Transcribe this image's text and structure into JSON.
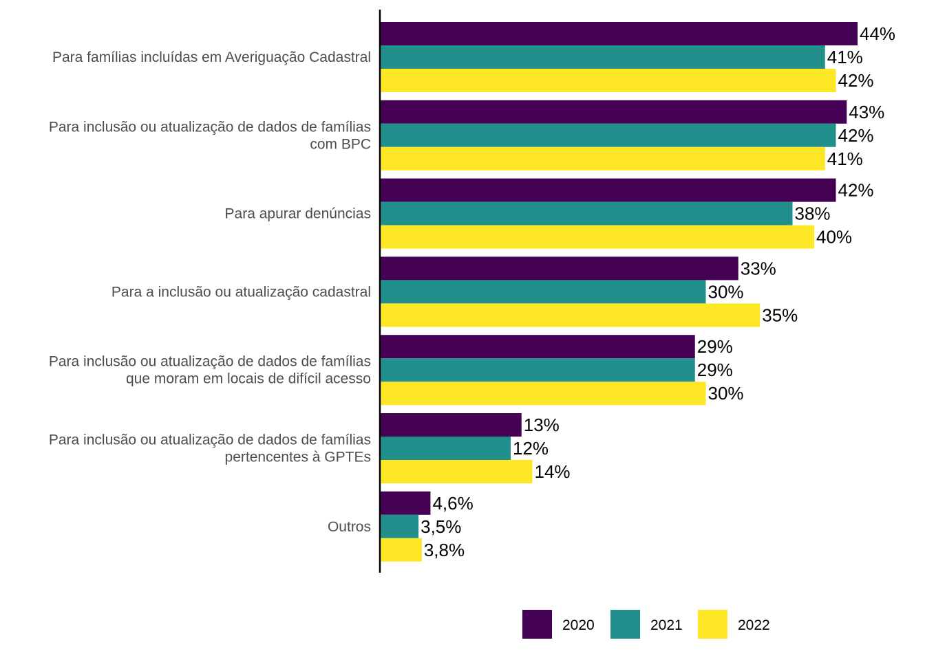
{
  "chart_data": {
    "type": "bar",
    "orientation": "horizontal",
    "categories": [
      [
        "Para famílias incluídas em Averiguação Cadastral"
      ],
      [
        "Para inclusão ou atualização de dados de famílias",
        "com BPC"
      ],
      [
        "Para apurar denúncias"
      ],
      [
        "Para a inclusão ou atualização cadastral"
      ],
      [
        "Para inclusão ou atualização de dados de famílias",
        "que moram em locais de difícil acesso"
      ],
      [
        "Para inclusão ou atualização de dados de famílias",
        "pertencentes à GPTEs"
      ],
      [
        "Outros"
      ]
    ],
    "series": [
      {
        "name": "2020",
        "color": "#440154",
        "values": [
          44,
          43,
          42,
          33,
          29,
          13,
          4.6
        ],
        "labels": [
          "44%",
          "43%",
          "42%",
          "33%",
          "29%",
          "13%",
          "4,6%"
        ]
      },
      {
        "name": "2021",
        "color": "#21908C",
        "values": [
          41,
          42,
          38,
          30,
          29,
          12,
          3.5
        ],
        "labels": [
          "41%",
          "42%",
          "38%",
          "30%",
          "29%",
          "12%",
          "3,5%"
        ]
      },
      {
        "name": "2022",
        "color": "#FDE725",
        "values": [
          42,
          41,
          40,
          35,
          30,
          14,
          3.8
        ],
        "labels": [
          "42%",
          "41%",
          "40%",
          "35%",
          "30%",
          "14%",
          "3,8%"
        ]
      }
    ],
    "xlim": [
      0,
      44
    ],
    "grid": false,
    "legend_position": "bottom",
    "title": "",
    "xlabel": "",
    "ylabel": ""
  }
}
